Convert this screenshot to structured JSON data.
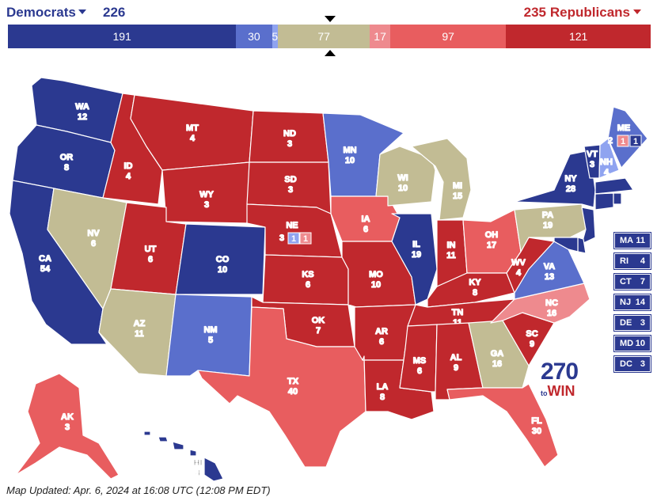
{
  "header": {
    "dem_label": "Democrats",
    "dem_total": "226",
    "rep_total": "235",
    "rep_label": "Republicans"
  },
  "bar": [
    {
      "label": "191",
      "value": 191,
      "color": "#2b3990"
    },
    {
      "label": "30",
      "value": 30,
      "color": "#5a6fcc"
    },
    {
      "label": "5",
      "value": 5,
      "color": "#8fa3f0"
    },
    {
      "label": "77",
      "value": 77,
      "color": "#c2bc94"
    },
    {
      "label": "17",
      "value": 17,
      "color": "#ee8a8e"
    },
    {
      "label": "97",
      "value": 97,
      "color": "#e85d5f"
    },
    {
      "label": "121",
      "value": 121,
      "color": "#c0282d"
    }
  ],
  "colors": {
    "safe_d": "#2b3990",
    "likely_d": "#5a6fcc",
    "lean_d": "#8fa3f0",
    "tossup": "#c2bc94",
    "lean_r": "#ee8a8e",
    "likely_r": "#e85d5f",
    "safe_r": "#c0282d"
  },
  "states": {
    "WA": {
      "abbr": "WA",
      "ev": "12"
    },
    "OR": {
      "abbr": "OR",
      "ev": "8"
    },
    "CA": {
      "abbr": "CA",
      "ev": "54"
    },
    "ID": {
      "abbr": "ID",
      "ev": "4"
    },
    "NV": {
      "abbr": "NV",
      "ev": "6"
    },
    "MT": {
      "abbr": "MT",
      "ev": "4"
    },
    "WY": {
      "abbr": "WY",
      "ev": "3"
    },
    "UT": {
      "abbr": "UT",
      "ev": "6"
    },
    "AZ": {
      "abbr": "AZ",
      "ev": "11"
    },
    "CO": {
      "abbr": "CO",
      "ev": "10"
    },
    "NM": {
      "abbr": "NM",
      "ev": "5"
    },
    "ND": {
      "abbr": "ND",
      "ev": "3"
    },
    "SD": {
      "abbr": "SD",
      "ev": "3"
    },
    "NE": {
      "abbr": "NE",
      "ev": "3"
    },
    "KS": {
      "abbr": "KS",
      "ev": "6"
    },
    "OK": {
      "abbr": "OK",
      "ev": "7"
    },
    "TX": {
      "abbr": "TX",
      "ev": "40"
    },
    "MN": {
      "abbr": "MN",
      "ev": "10"
    },
    "IA": {
      "abbr": "IA",
      "ev": "6"
    },
    "MO": {
      "abbr": "MO",
      "ev": "10"
    },
    "AR": {
      "abbr": "AR",
      "ev": "6"
    },
    "LA": {
      "abbr": "LA",
      "ev": "8"
    },
    "WI": {
      "abbr": "WI",
      "ev": "10"
    },
    "IL": {
      "abbr": "IL",
      "ev": "19"
    },
    "MI": {
      "abbr": "MI",
      "ev": "15"
    },
    "IN": {
      "abbr": "IN",
      "ev": "11"
    },
    "OH": {
      "abbr": "OH",
      "ev": "17"
    },
    "KY": {
      "abbr": "KY",
      "ev": "8"
    },
    "TN": {
      "abbr": "TN",
      "ev": "11"
    },
    "MS": {
      "abbr": "MS",
      "ev": "6"
    },
    "AL": {
      "abbr": "AL",
      "ev": "9"
    },
    "GA": {
      "abbr": "GA",
      "ev": "16"
    },
    "FL": {
      "abbr": "FL",
      "ev": "30"
    },
    "SC": {
      "abbr": "SC",
      "ev": "9"
    },
    "NC": {
      "abbr": "NC",
      "ev": "16"
    },
    "VA": {
      "abbr": "VA",
      "ev": "13"
    },
    "WV": {
      "abbr": "WV",
      "ev": "4"
    },
    "PA": {
      "abbr": "PA",
      "ev": "19"
    },
    "NY": {
      "abbr": "NY",
      "ev": "28"
    },
    "VT": {
      "abbr": "VT",
      "ev": "3"
    },
    "NH": {
      "abbr": "NH",
      "ev": "4"
    },
    "ME": {
      "abbr": "ME",
      "ev": "2"
    },
    "AK": {
      "abbr": "AK",
      "ev": "3"
    },
    "HI": {
      "abbr": "HI",
      "ev": "4"
    }
  },
  "districts": {
    "ne1": "1",
    "ne2": "1",
    "me1": "1",
    "me2": "1"
  },
  "small_states": [
    {
      "abbr": "MA",
      "ev": "11"
    },
    {
      "abbr": "RI",
      "ev": "4"
    },
    {
      "abbr": "CT",
      "ev": "7"
    },
    {
      "abbr": "NJ",
      "ev": "14"
    },
    {
      "abbr": "DE",
      "ev": "3"
    },
    {
      "abbr": "MD",
      "ev": "10"
    },
    {
      "abbr": "DC",
      "ev": "3"
    }
  ],
  "logo": {
    "number": "270",
    "to": "to",
    "win": "WIN"
  },
  "footer": "Map Updated: Apr. 6, 2024 at 16:08 UTC (12:08 PM EDT)"
}
